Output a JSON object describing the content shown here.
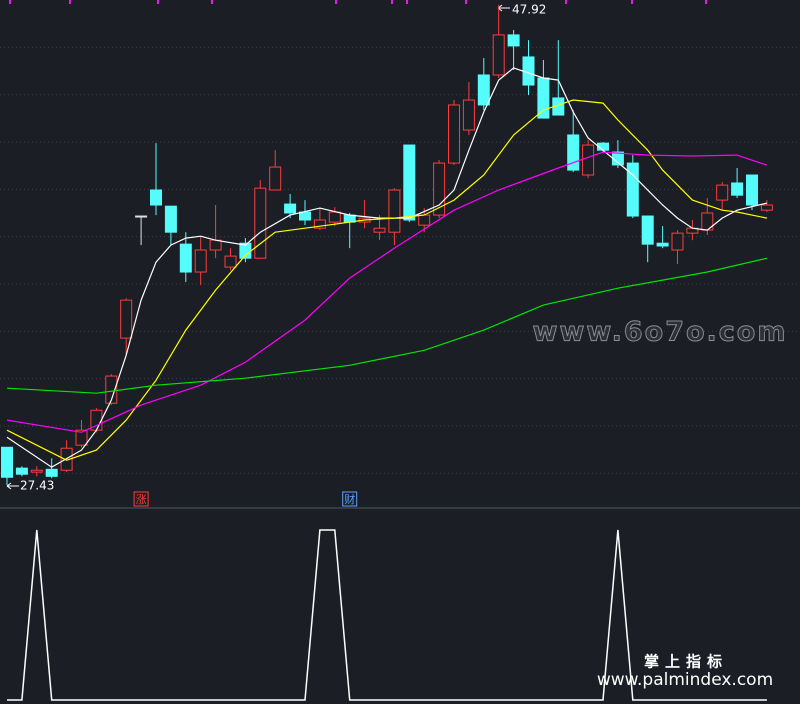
{
  "chart_data": {
    "type": "candlestick",
    "ylim": [
      26.79,
      48.13
    ],
    "yticks": [
      46.11,
      44.09,
      42.07,
      40.05,
      38.03,
      36.01,
      33.99,
      31.97,
      29.95,
      27.93
    ],
    "grid": true,
    "up_color": "#ff3c3c",
    "down_color": "#54fcfc",
    "flat_color": "#e0e0e0",
    "open": [
      29.04,
      28.15,
      27.98,
      28.1,
      28.06,
      29.13,
      29.77,
      30.92,
      33.7,
      38.91,
      40.02,
      39.33,
      37.71,
      36.52,
      37.46,
      36.73,
      37.75,
      37.11,
      40.02,
      39.42,
      39.08,
      38.39,
      38.65,
      38.95,
      38.65,
      38.22,
      38.22,
      41.94,
      38.52,
      38.95,
      41.17,
      42.58,
      44.93,
      44.93,
      46.64,
      45.7,
      44.8,
      43.95,
      42.37,
      40.66,
      42.02,
      41.64,
      41.17,
      38.91,
      37.75,
      37.46,
      38.18,
      38.31,
      39.59,
      40.32,
      40.66,
      39.16
    ],
    "high": [
      29.04,
      28.23,
      28.23,
      28.57,
      29.34,
      30.2,
      30.71,
      32.16,
      35.41,
      38.91,
      42.02,
      39.33,
      38.22,
      38.01,
      39.38,
      37.54,
      37.97,
      40.44,
      41.72,
      39.85,
      39.59,
      39.25,
      39.29,
      39.04,
      39.59,
      38.95,
      40.1,
      41.94,
      39.25,
      41.3,
      43.86,
      44.63,
      45.65,
      47.92,
      46.85,
      46.42,
      45.57,
      46.42,
      43.43,
      42.15,
      42.07,
      42.15,
      41.51,
      38.91,
      38.48,
      38.31,
      38.74,
      39.68,
      40.36,
      40.96,
      40.66,
      39.59
    ],
    "low": [
      27.43,
      27.8,
      27.8,
      27.72,
      27.98,
      29.04,
      29.68,
      30.84,
      32.97,
      37.67,
      38.95,
      37.67,
      36.09,
      35.96,
      37.11,
      36.6,
      36.94,
      37.11,
      40.02,
      38.82,
      38.52,
      38.31,
      38.48,
      37.54,
      38.39,
      37.88,
      37.67,
      38.65,
      38.22,
      38.82,
      41.09,
      42.37,
      43.43,
      44.8,
      45.14,
      44.07,
      43.09,
      43.22,
      40.79,
      40.53,
      41.64,
      40.96,
      38.82,
      36.94,
      37.54,
      36.86,
      37.88,
      38.1,
      39.16,
      39.68,
      39.16,
      39.08
    ],
    "close": [
      27.76,
      27.89,
      28.06,
      27.8,
      29.0,
      29.77,
      30.62,
      32.08,
      35.32,
      38.91,
      39.38,
      38.22,
      36.52,
      37.46,
      37.88,
      37.2,
      37.11,
      40.1,
      41.0,
      39.04,
      38.74,
      38.74,
      39.08,
      38.65,
      38.82,
      38.39,
      40.02,
      38.74,
      38.95,
      41.17,
      43.65,
      43.86,
      43.65,
      46.64,
      46.17,
      44.5,
      43.09,
      43.22,
      40.87,
      41.94,
      41.72,
      41.09,
      38.91,
      37.71,
      37.63,
      38.18,
      38.39,
      39.04,
      40.23,
      39.8,
      39.38,
      39.38
    ],
    "event_labels": [
      null,
      null,
      null,
      null,
      null,
      null,
      null,
      null,
      null,
      "涨",
      null,
      null,
      null,
      null,
      null,
      null,
      null,
      null,
      null,
      null,
      null,
      null,
      null,
      "财",
      null,
      null,
      null,
      null,
      null,
      null,
      null,
      null,
      null,
      null,
      null,
      null,
      null,
      null,
      null,
      null,
      null,
      null,
      null,
      null,
      null,
      null,
      null,
      null,
      null,
      null,
      null,
      null
    ],
    "series": [
      {
        "color": "#ffffff",
        "x": [
          0,
          3,
          5,
          6,
          7,
          8,
          9,
          10,
          11,
          12,
          13,
          14,
          16,
          17,
          19,
          21,
          23,
          25,
          27,
          29,
          30,
          31,
          32,
          33,
          34,
          36,
          37,
          38,
          39,
          40,
          42,
          44,
          45,
          46,
          47,
          48,
          49,
          51
        ],
        "values": [
          29.47,
          28.19,
          28.92,
          29.77,
          31.05,
          32.97,
          35.32,
          36.94,
          37.67,
          37.97,
          38.05,
          37.88,
          37.67,
          38.22,
          38.95,
          39.25,
          38.95,
          38.82,
          38.82,
          39.38,
          40.02,
          41.72,
          43.35,
          44.71,
          45.23,
          44.8,
          44.71,
          43.35,
          42.24,
          41.72,
          40.66,
          39.38,
          38.82,
          38.39,
          38.31,
          38.82,
          39.16,
          39.46
        ]
      },
      {
        "color": "#ffff00",
        "x": [
          0,
          4,
          6,
          8,
          10,
          12,
          14,
          16,
          18,
          20,
          22,
          24,
          26,
          28,
          30,
          32,
          34,
          36,
          38,
          40,
          41,
          43,
          44,
          46,
          48,
          49,
          51
        ],
        "values": [
          29.77,
          28.49,
          28.92,
          30.2,
          31.9,
          34.04,
          35.75,
          37.24,
          38.22,
          38.39,
          38.56,
          38.74,
          38.82,
          38.95,
          39.59,
          40.66,
          42.37,
          43.43,
          43.86,
          43.73,
          43.01,
          41.72,
          40.87,
          39.59,
          39.16,
          39.08,
          38.82
        ]
      },
      {
        "color": "#ff00ff",
        "x": [
          0,
          5,
          9,
          13,
          16,
          20,
          23,
          26,
          30,
          33,
          37,
          40,
          43,
          46,
          49,
          51
        ],
        "values": [
          30.2,
          29.68,
          30.84,
          31.69,
          32.67,
          34.47,
          36.26,
          37.54,
          39.16,
          40.02,
          40.96,
          41.64,
          41.51,
          41.47,
          41.51,
          41.08
        ]
      },
      {
        "color": "#00e600",
        "x": [
          0,
          6,
          10,
          16,
          23,
          28,
          32,
          36,
          41,
          47,
          51
        ],
        "values": [
          31.56,
          31.35,
          31.69,
          31.99,
          32.54,
          33.18,
          34.04,
          35.11,
          35.83,
          36.52,
          37.11
        ]
      }
    ],
    "indicator": {
      "color": "#ffffff",
      "ylim": [
        0,
        1
      ],
      "values": [
        0,
        0,
        1,
        0,
        0,
        0,
        0,
        0,
        0,
        0,
        0,
        0,
        0,
        0,
        0,
        0,
        0,
        0,
        0,
        0,
        0,
        1,
        1,
        0,
        0,
        0,
        0,
        0,
        0,
        0,
        0,
        0,
        0,
        0,
        0,
        0,
        0,
        0,
        0,
        0,
        0,
        1,
        0,
        0,
        0,
        0,
        0,
        0,
        0,
        0,
        0,
        0
      ]
    },
    "watermarks": [
      "www.6o7o.com",
      "掌上指标",
      "www.palmindex.com"
    ]
  }
}
